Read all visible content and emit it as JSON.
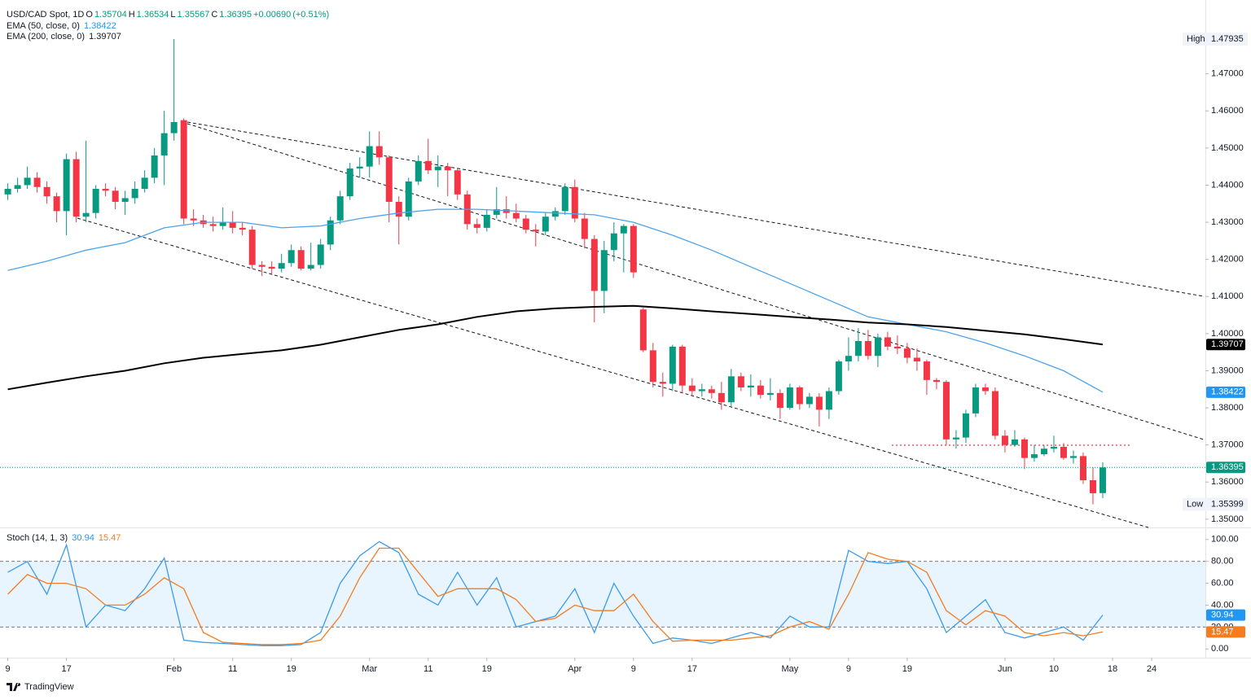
{
  "branding": "TradingView",
  "chart_data": [
    {
      "type": "candlestick",
      "title": "USD/CAD Spot, 1D",
      "ohlc_keys": [
        "O",
        "H",
        "L",
        "C"
      ],
      "change": {
        "value": 0.0069,
        "label": "+0.00690"
      },
      "change_pct": {
        "value": 0.51,
        "label": "(+0.51%)"
      },
      "up_color": "#089981",
      "down_color": "#f23645",
      "high_label": "High",
      "low_label": "Low",
      "xlim": [
        -0.8,
        122.5
      ],
      "xticks": [
        {
          "value": 0,
          "label": "9"
        },
        {
          "value": 6,
          "label": "17"
        },
        {
          "value": 17,
          "label": "Feb"
        },
        {
          "value": 23,
          "label": "11"
        },
        {
          "value": 29,
          "label": "19"
        },
        {
          "value": 37,
          "label": "Mar"
        },
        {
          "value": 43,
          "label": "11"
        },
        {
          "value": 49,
          "label": "19"
        },
        {
          "value": 58,
          "label": "Apr"
        },
        {
          "value": 64,
          "label": "9"
        },
        {
          "value": 70,
          "label": "17"
        },
        {
          "value": 80,
          "label": "May"
        },
        {
          "value": 86,
          "label": "9"
        },
        {
          "value": 92,
          "label": "19"
        },
        {
          "value": 102,
          "label": "Jun"
        },
        {
          "value": 107,
          "label": "10"
        },
        {
          "value": 113,
          "label": "18"
        },
        {
          "value": 117,
          "label": "24"
        }
      ],
      "ylim": [
        1.348,
        1.489
      ],
      "yticks": [
        {
          "value": 1.35,
          "label": "1.35000"
        },
        {
          "value": 1.36,
          "label": "1.36000"
        },
        {
          "value": 1.37,
          "label": "1.37000"
        },
        {
          "value": 1.38,
          "label": "1.38000"
        },
        {
          "value": 1.39,
          "label": "1.39000"
        },
        {
          "value": 1.4,
          "label": "1.40000"
        },
        {
          "value": 1.41,
          "label": "1.41000"
        },
        {
          "value": 1.42,
          "label": "1.42000"
        },
        {
          "value": 1.43,
          "label": "1.43000"
        },
        {
          "value": 1.44,
          "label": "1.44000"
        },
        {
          "value": 1.45,
          "label": "1.45000"
        },
        {
          "value": 1.46,
          "label": "1.46000"
        },
        {
          "value": 1.47,
          "label": "1.47000"
        }
      ],
      "candles": [
        [
          1.4375,
          1.4405,
          1.436,
          1.439
        ],
        [
          1.439,
          1.442,
          1.438,
          1.44
        ],
        [
          1.44,
          1.445,
          1.439,
          1.442
        ],
        [
          1.442,
          1.4435,
          1.438,
          1.4395
        ],
        [
          1.4395,
          1.441,
          1.435,
          1.437
        ],
        [
          1.437,
          1.438,
          1.43,
          1.433
        ],
        [
          1.433,
          1.4485,
          1.4265,
          1.447
        ],
        [
          1.447,
          1.449,
          1.43,
          1.4315
        ],
        [
          1.4315,
          1.452,
          1.43,
          1.4325
        ],
        [
          1.4325,
          1.44,
          1.431,
          1.439
        ],
        [
          1.439,
          1.4405,
          1.437,
          1.4385
        ],
        [
          1.4385,
          1.4395,
          1.4335,
          1.4355
        ],
        [
          1.4355,
          1.4385,
          1.432,
          1.4365
        ],
        [
          1.4365,
          1.441,
          1.435,
          1.439
        ],
        [
          1.439,
          1.444,
          1.438,
          1.442
        ],
        [
          1.442,
          1.45,
          1.4405,
          1.448
        ],
        [
          1.448,
          1.46,
          1.44,
          1.454
        ],
        [
          1.454,
          1.47935,
          1.452,
          1.457
        ],
        [
          1.4575,
          1.458,
          1.4295,
          1.431
        ],
        [
          1.431,
          1.4335,
          1.429,
          1.4305
        ],
        [
          1.4305,
          1.432,
          1.4285,
          1.4295
        ],
        [
          1.4295,
          1.4315,
          1.4275,
          1.429
        ],
        [
          1.429,
          1.434,
          1.428,
          1.43
        ],
        [
          1.43,
          1.433,
          1.427,
          1.4285
        ],
        [
          1.4285,
          1.43,
          1.4265,
          1.428
        ],
        [
          1.428,
          1.429,
          1.4175,
          1.4185
        ],
        [
          1.4185,
          1.4195,
          1.4155,
          1.418
        ],
        [
          1.418,
          1.4195,
          1.416,
          1.4175
        ],
        [
          1.4175,
          1.4215,
          1.4165,
          1.419
        ],
        [
          1.419,
          1.424,
          1.418,
          1.4225
        ],
        [
          1.4225,
          1.4235,
          1.417,
          1.4175
        ],
        [
          1.4175,
          1.4245,
          1.417,
          1.4185
        ],
        [
          1.4185,
          1.4255,
          1.4175,
          1.424
        ],
        [
          1.424,
          1.4315,
          1.4225,
          1.4305
        ],
        [
          1.4305,
          1.4385,
          1.4295,
          1.437
        ],
        [
          1.437,
          1.446,
          1.436,
          1.4445
        ],
        [
          1.4445,
          1.4475,
          1.442,
          1.445
        ],
        [
          1.445,
          1.4545,
          1.442,
          1.4505
        ],
        [
          1.4505,
          1.4545,
          1.4455,
          1.4475
        ],
        [
          1.4475,
          1.448,
          1.43,
          1.4355
        ],
        [
          1.4355,
          1.437,
          1.424,
          1.4315
        ],
        [
          1.4315,
          1.442,
          1.4305,
          1.441
        ],
        [
          1.441,
          1.448,
          1.44,
          1.4465
        ],
        [
          1.4465,
          1.4525,
          1.443,
          1.444
        ],
        [
          1.444,
          1.448,
          1.4395,
          1.445
        ],
        [
          1.445,
          1.446,
          1.437,
          1.444
        ],
        [
          1.444,
          1.4445,
          1.436,
          1.4375
        ],
        [
          1.4375,
          1.4385,
          1.428,
          1.4295
        ],
        [
          1.4295,
          1.431,
          1.427,
          1.4285
        ],
        [
          1.4285,
          1.4335,
          1.4275,
          1.432
        ],
        [
          1.432,
          1.4395,
          1.431,
          1.4335
        ],
        [
          1.4335,
          1.437,
          1.431,
          1.4325
        ],
        [
          1.4325,
          1.435,
          1.43,
          1.431
        ],
        [
          1.431,
          1.432,
          1.427,
          1.428
        ],
        [
          1.428,
          1.4295,
          1.4235,
          1.4275
        ],
        [
          1.4275,
          1.4325,
          1.4265,
          1.4315
        ],
        [
          1.4315,
          1.434,
          1.4305,
          1.433
        ],
        [
          1.433,
          1.4405,
          1.432,
          1.4395
        ],
        [
          1.4395,
          1.4415,
          1.43,
          1.431
        ],
        [
          1.431,
          1.4325,
          1.423,
          1.4255
        ],
        [
          1.4255,
          1.4265,
          1.403,
          1.4115
        ],
        [
          1.4115,
          1.425,
          1.4055,
          1.4225
        ],
        [
          1.4225,
          1.43,
          1.4195,
          1.427
        ],
        [
          1.427,
          1.4295,
          1.4165,
          1.429
        ],
        [
          1.429,
          1.4295,
          1.415,
          1.4165
        ],
        [
          1.4065,
          1.407,
          1.395,
          1.3955
        ],
        [
          1.3955,
          1.3975,
          1.3855,
          1.387
        ],
        [
          1.387,
          1.3895,
          1.383,
          1.3865
        ],
        [
          1.3865,
          1.397,
          1.3845,
          1.3965
        ],
        [
          1.3965,
          1.397,
          1.384,
          1.386
        ],
        [
          1.386,
          1.388,
          1.3835,
          1.3845
        ],
        [
          1.3845,
          1.3865,
          1.383,
          1.385
        ],
        [
          1.385,
          1.386,
          1.3825,
          1.384
        ],
        [
          1.384,
          1.387,
          1.3795,
          1.3815
        ],
        [
          1.3815,
          1.3905,
          1.3805,
          1.3885
        ],
        [
          1.3885,
          1.3895,
          1.3845,
          1.3855
        ],
        [
          1.3855,
          1.389,
          1.383,
          1.386
        ],
        [
          1.386,
          1.3875,
          1.3825,
          1.3835
        ],
        [
          1.3835,
          1.388,
          1.382,
          1.384
        ],
        [
          1.384,
          1.385,
          1.377,
          1.38
        ],
        [
          1.38,
          1.3865,
          1.3795,
          1.3855
        ],
        [
          1.3855,
          1.386,
          1.3795,
          1.381
        ],
        [
          1.381,
          1.384,
          1.38,
          1.383
        ],
        [
          1.383,
          1.384,
          1.375,
          1.3795
        ],
        [
          1.3795,
          1.3855,
          1.377,
          1.3845
        ],
        [
          1.3845,
          1.393,
          1.3835,
          1.3925
        ],
        [
          1.3925,
          1.399,
          1.39,
          1.394
        ],
        [
          1.394,
          1.4015,
          1.3925,
          1.398
        ],
        [
          1.398,
          1.401,
          1.393,
          1.394
        ],
        [
          1.394,
          1.4,
          1.391,
          1.399
        ],
        [
          1.399,
          1.4005,
          1.3955,
          1.3965
        ],
        [
          1.3965,
          1.3995,
          1.3945,
          1.396
        ],
        [
          1.396,
          1.3975,
          1.392,
          1.3935
        ],
        [
          1.3935,
          1.396,
          1.39,
          1.3925
        ],
        [
          1.3925,
          1.393,
          1.3835,
          1.3875
        ],
        [
          1.3875,
          1.388,
          1.385,
          1.387
        ],
        [
          1.387,
          1.3875,
          1.37,
          1.3715
        ],
        [
          1.3715,
          1.374,
          1.369,
          1.372
        ],
        [
          1.372,
          1.3795,
          1.3705,
          1.3785
        ],
        [
          1.3785,
          1.3865,
          1.3775,
          1.3855
        ],
        [
          1.3855,
          1.3865,
          1.3835,
          1.3845
        ],
        [
          1.3845,
          1.3855,
          1.3715,
          1.3725
        ],
        [
          1.3725,
          1.374,
          1.368,
          1.37
        ],
        [
          1.37,
          1.374,
          1.3695,
          1.3715
        ],
        [
          1.3715,
          1.372,
          1.3635,
          1.3665
        ],
        [
          1.3665,
          1.37,
          1.3655,
          1.3675
        ],
        [
          1.3675,
          1.37,
          1.367,
          1.369
        ],
        [
          1.369,
          1.3725,
          1.368,
          1.3695
        ],
        [
          1.3695,
          1.3705,
          1.366,
          1.3665
        ],
        [
          1.3665,
          1.3685,
          1.365,
          1.367
        ],
        [
          1.367,
          1.368,
          1.3595,
          1.3605
        ],
        [
          1.3605,
          1.364,
          1.35399,
          1.357
        ],
        [
          1.35704,
          1.36534,
          1.35567,
          1.36395
        ]
      ],
      "series": [
        {
          "name": "EMA (50, close, 0)",
          "color": "#4aa3ee",
          "x": [
            0,
            4,
            8,
            12,
            16,
            20,
            24,
            28,
            32,
            36,
            40,
            44,
            48,
            52,
            56,
            60,
            64,
            68,
            72,
            76,
            80,
            84,
            88,
            92,
            96,
            100,
            104,
            108,
            112
          ],
          "values": [
            1.417,
            1.4195,
            1.4225,
            1.4245,
            1.4285,
            1.43,
            1.43,
            1.4285,
            1.429,
            1.431,
            1.4325,
            1.4335,
            1.4335,
            1.433,
            1.4325,
            1.432,
            1.43,
            1.4265,
            1.4225,
            1.418,
            1.4135,
            1.409,
            1.4045,
            1.4025,
            1.4005,
            1.3975,
            1.394,
            1.39,
            1.38422
          ]
        },
        {
          "name": "EMA (200, close, 0)",
          "color": "#000000",
          "x": [
            0,
            4,
            8,
            12,
            16,
            20,
            24,
            28,
            32,
            36,
            40,
            44,
            48,
            52,
            56,
            60,
            64,
            68,
            72,
            76,
            80,
            84,
            88,
            92,
            96,
            100,
            104,
            108,
            112
          ],
          "values": [
            1.385,
            1.3868,
            1.3885,
            1.39,
            1.392,
            1.3935,
            1.3945,
            1.3955,
            1.397,
            1.399,
            1.401,
            1.4025,
            1.4045,
            1.406,
            1.4068,
            1.4072,
            1.4075,
            1.4068,
            1.406,
            1.4053,
            1.4045,
            1.4038,
            1.403,
            1.4025,
            1.4018,
            1.4008,
            1.3998,
            1.3985,
            1.39707
          ]
        }
      ]
    },
    {
      "type": "line",
      "title": "Stoch (14, 1, 3)",
      "ylim": [
        -8,
        108
      ],
      "yticks": [
        {
          "value": 0,
          "label": "0.00"
        },
        {
          "value": 20,
          "label": "20.00"
        },
        {
          "value": 40,
          "label": "40.00"
        },
        {
          "value": 60,
          "label": "60.00"
        },
        {
          "value": 80,
          "label": "80.00"
        },
        {
          "value": 100,
          "label": "100.00"
        }
      ],
      "levels": [
        20,
        80
      ],
      "series": [
        {
          "color": "#3d9be9",
          "x": [
            0,
            2,
            4,
            6,
            8,
            10,
            12,
            14,
            16,
            18,
            20,
            22,
            24,
            26,
            28,
            30,
            32,
            34,
            36,
            38,
            40,
            42,
            44,
            46,
            48,
            50,
            52,
            54,
            56,
            58,
            60,
            62,
            64,
            66,
            68,
            70,
            72,
            74,
            76,
            78,
            80,
            82,
            84,
            86,
            88,
            90,
            92,
            94,
            96,
            98,
            100,
            102,
            104,
            106,
            108,
            110,
            112
          ],
          "values": [
            70,
            80,
            50,
            95,
            20,
            40,
            35,
            55,
            83,
            8,
            6,
            5,
            4,
            3,
            3,
            4,
            15,
            60,
            85,
            98,
            88,
            50,
            40,
            70,
            40,
            65,
            20,
            25,
            30,
            55,
            15,
            60,
            30,
            5,
            10,
            8,
            5,
            10,
            15,
            10,
            30,
            20,
            20,
            90,
            80,
            78,
            80,
            55,
            15,
            30,
            45,
            15,
            10,
            15,
            20,
            8,
            30.94
          ]
        },
        {
          "color": "#f57c1f",
          "x": [
            0,
            2,
            4,
            6,
            8,
            10,
            12,
            14,
            16,
            18,
            20,
            22,
            24,
            26,
            28,
            30,
            32,
            34,
            36,
            38,
            40,
            42,
            44,
            46,
            48,
            50,
            52,
            54,
            56,
            58,
            60,
            62,
            64,
            66,
            68,
            70,
            72,
            74,
            76,
            78,
            80,
            82,
            84,
            86,
            88,
            90,
            92,
            94,
            96,
            98,
            100,
            102,
            104,
            106,
            108,
            110,
            112
          ],
          "values": [
            50,
            68,
            60,
            60,
            55,
            40,
            40,
            50,
            65,
            55,
            15,
            6,
            5,
            4,
            4,
            5,
            8,
            30,
            65,
            92,
            92,
            70,
            48,
            55,
            55,
            55,
            45,
            25,
            28,
            40,
            35,
            35,
            50,
            25,
            7,
            8,
            8,
            8,
            10,
            12,
            20,
            25,
            18,
            50,
            88,
            82,
            80,
            70,
            35,
            22,
            35,
            30,
            15,
            12,
            15,
            12,
            15.47
          ]
        }
      ]
    }
  ]
}
